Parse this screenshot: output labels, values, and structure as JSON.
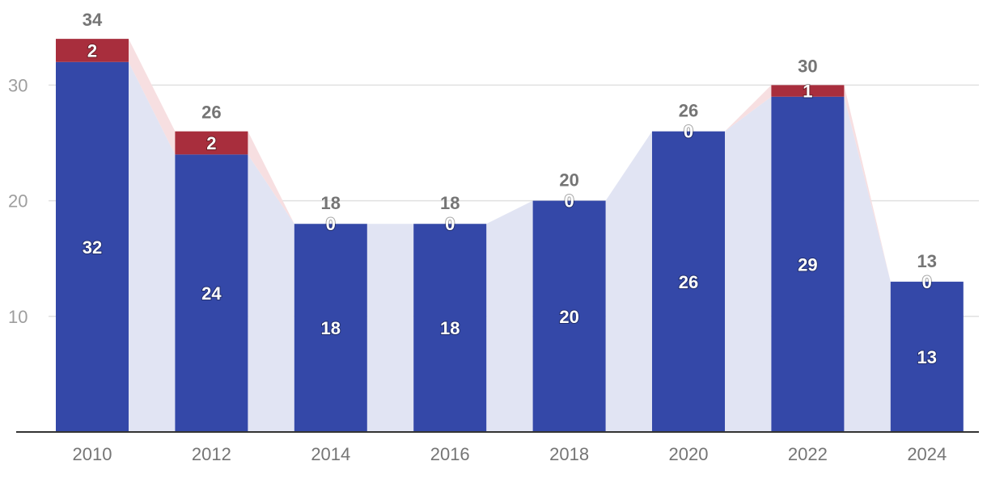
{
  "chart_data": {
    "type": "bar",
    "stacked": true,
    "categories": [
      "2010",
      "2012",
      "2014",
      "2016",
      "2018",
      "2020",
      "2022",
      "2024"
    ],
    "series": [
      {
        "values": [
          32,
          24,
          18,
          18,
          20,
          26,
          29,
          13
        ],
        "color": "#3448a8"
      },
      {
        "values": [
          2,
          2,
          0,
          0,
          0,
          0,
          1,
          0
        ],
        "color": "#a82e3d"
      }
    ],
    "totals": [
      34,
      26,
      18,
      18,
      20,
      26,
      30,
      13
    ],
    "y_ticks": [
      10,
      20,
      30
    ],
    "ylim": [
      0,
      34
    ],
    "grid": true,
    "area_fill_colors": [
      "#e1e4f3",
      "#f7dfe1"
    ],
    "axis_color": "#333333",
    "grid_color": "#e0e0e0"
  }
}
